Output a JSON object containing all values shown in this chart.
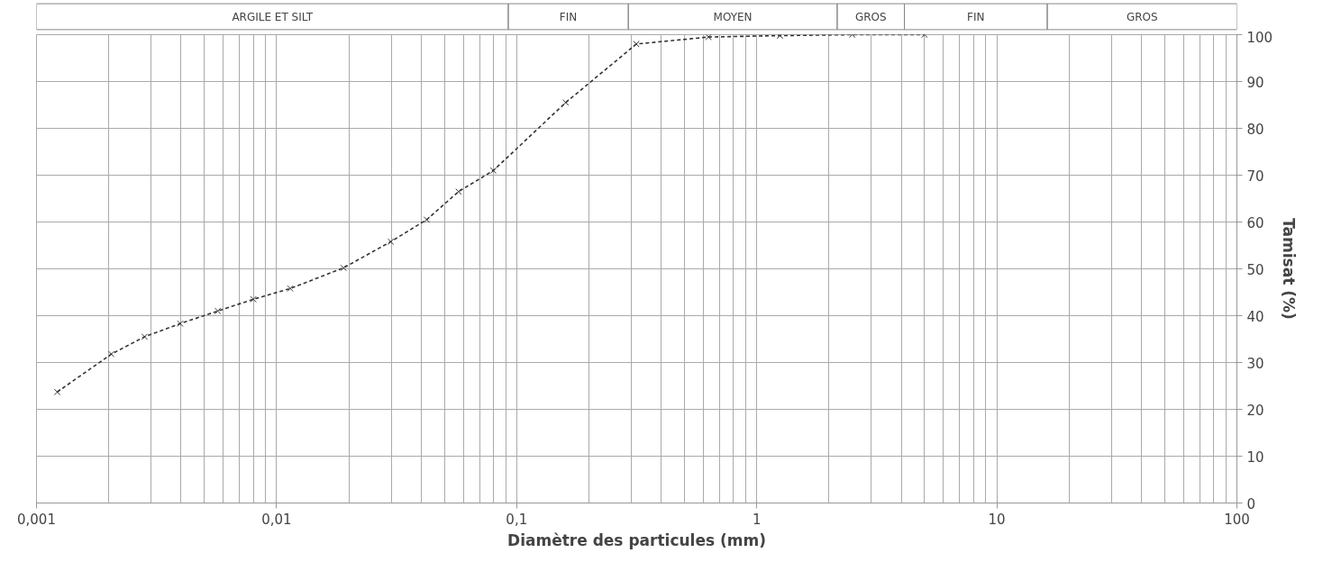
{
  "chart_data": {
    "type": "line",
    "xlabel": "Diamètre des particules (mm)",
    "ylabel": "Tamisat (%)",
    "annotations": [
      "ARGILE ET SILT",
      "FIN",
      "MOYEN",
      "GROS",
      "FIN",
      "GROS"
    ],
    "log": "x",
    "xlim": [
      0.001,
      100
    ],
    "ylim": [
      0,
      100
    ],
    "xticks": [
      {
        "value": 0.001,
        "label": "0,001"
      },
      {
        "value": 0.01,
        "label": "0,01"
      },
      {
        "value": 0.1,
        "label": "0,1"
      },
      1,
      10,
      100
    ],
    "yticks": [
      0,
      10,
      20,
      30,
      40,
      50,
      60,
      70,
      80,
      90,
      100
    ],
    "grid": true,
    "marker": "cross",
    "line_style": "dashed",
    "series": [
      {
        "color": "#333333",
        "x": [
          0.00122,
          0.00205,
          0.00282,
          0.00397,
          0.00569,
          0.008,
          0.0114,
          0.019,
          0.0299,
          0.0422,
          0.0573,
          0.08,
          0.16,
          0.315,
          0.63,
          1.25,
          2.5,
          5
        ],
        "values": [
          23.7,
          31.8,
          35.5,
          38.3,
          41,
          43.5,
          45.8,
          50.2,
          55.8,
          60.5,
          66.5,
          71,
          85.5,
          98,
          99.5,
          99.8,
          100,
          100
        ]
      }
    ]
  }
}
